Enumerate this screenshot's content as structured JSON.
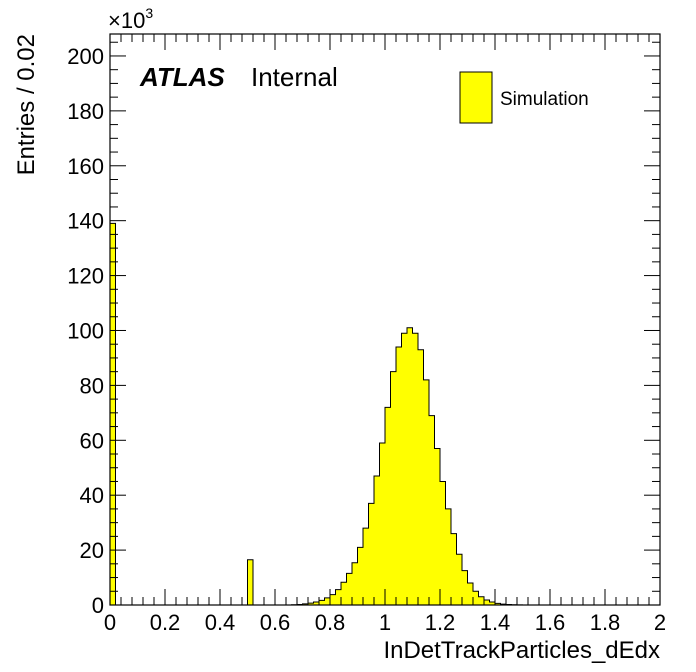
{
  "chart_data": {
    "type": "bar",
    "histogram": true,
    "xlabel": "InDetTrackParticles_dEdx",
    "ylabel": "Entries / 0.02",
    "xlim": [
      0,
      2
    ],
    "ylim": [
      0,
      208
    ],
    "y_multiplier": "×10",
    "y_multiplier_exponent": "3",
    "xticks": [
      "0",
      "0.2",
      "0.4",
      "0.6",
      "0.8",
      "1",
      "1.2",
      "1.4",
      "1.6",
      "1.8",
      "2"
    ],
    "yticks": [
      "0",
      "20",
      "40",
      "60",
      "80",
      "100",
      "120",
      "140",
      "160",
      "180",
      "200"
    ],
    "bin_width": 0.02,
    "bin_edges_start": 0,
    "series": [
      {
        "name": "Simulation",
        "color": "#ffff00",
        "edge_color": "#000000",
        "values": [
          139,
          0,
          0,
          0,
          0,
          0,
          0,
          0,
          0,
          0,
          0,
          0,
          0,
          0,
          0,
          0,
          0,
          0,
          0,
          0,
          0,
          0,
          0,
          0,
          0,
          16.5,
          0,
          0,
          0,
          0,
          0,
          0,
          0,
          0.1,
          0.2,
          0.4,
          0.7,
          1.1,
          1.7,
          2.6,
          3.8,
          5.6,
          8.3,
          11.5,
          15.4,
          21,
          28,
          37,
          47,
          59,
          72,
          85,
          94,
          99,
          101,
          99,
          93,
          82,
          69,
          57,
          45,
          35,
          26,
          18.5,
          12.5,
          8,
          5,
          3,
          1.8,
          1.1,
          0.6,
          0.3,
          0.2,
          0.1,
          0.05,
          0,
          0,
          0,
          0,
          0,
          0,
          0,
          0,
          0,
          0,
          0,
          0,
          0,
          0,
          0,
          0,
          0,
          0,
          0,
          0,
          0,
          0,
          0,
          0,
          0
        ]
      }
    ],
    "legend_placement": "top-right",
    "annotations": {
      "atlas_label": "ATLAS",
      "status_label": "Internal"
    },
    "grid": false
  }
}
